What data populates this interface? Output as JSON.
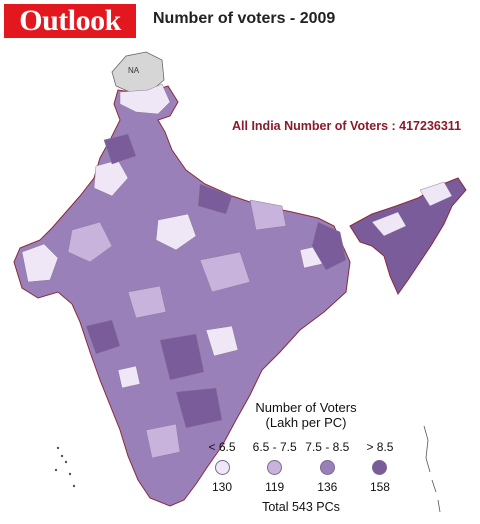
{
  "logo": "Outlook",
  "title": "Number of voters - 2009",
  "annotation": "All India Number of Voters : 417236311",
  "map_labels": {
    "na": "NA"
  },
  "legend": {
    "title_line1": "Number of Voters",
    "title_line2": "(Lakh per PC)",
    "items": [
      {
        "range": "< 6.5",
        "count": "130",
        "color": "#efe6f6"
      },
      {
        "range": "6.5 - 7.5",
        "count": "119",
        "color": "#c7b3dc"
      },
      {
        "range": "7.5 - 8.5",
        "count": "136",
        "color": "#9a80b8"
      },
      {
        "range": "> 8.5",
        "count": "158",
        "color": "#7a5c9a"
      }
    ],
    "total": "Total 543 PCs"
  },
  "colors": {
    "brand": "#e3181f",
    "annotation": "#8b1a2a",
    "border": "#8b2a3a"
  }
}
